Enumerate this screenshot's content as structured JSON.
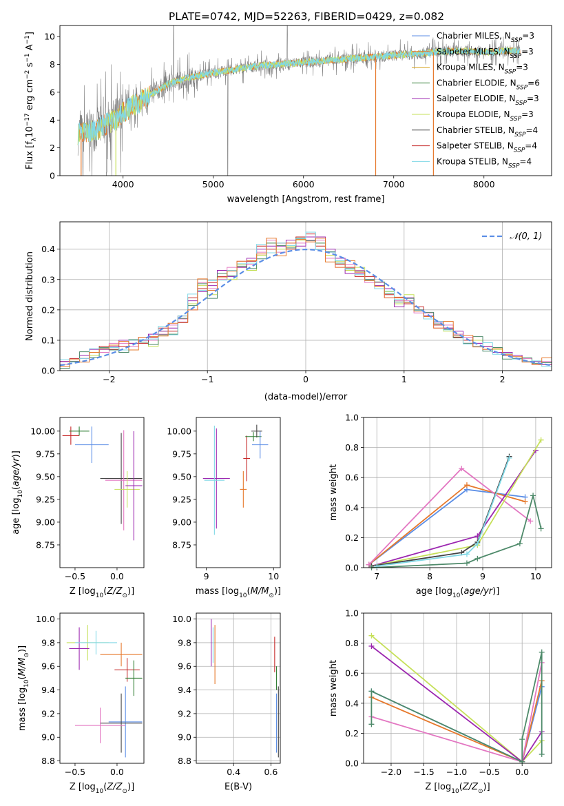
{
  "figure": {
    "title": "PLATE=0742, MJD=52263, FIBERID=0429, z=0.082"
  },
  "colors": {
    "chabrier_miles": "#5b8ee6",
    "salpeter_miles": "#e6782b",
    "kroupa_miles": "#d4a017",
    "chabrier_elodie": "#2e7d32",
    "salpeter_elodie": "#9c27b0",
    "kroupa_elodie": "#c6e05a",
    "chabrier_stelib": "#444444",
    "salpeter_stelib": "#c62828",
    "kroupa_stelib": "#80d8e6",
    "pink": "#e377c2",
    "green2": "#4e8a6a",
    "grid": "#b0b0b0",
    "data_grey": "#808080",
    "normal_curve": "#5b8ee6"
  },
  "chart_data": [
    {
      "id": "spectrum",
      "type": "line",
      "xlabel": "wavelength [Angstrom, rest frame]",
      "ylabel": "Flux [fλ10⁻¹⁷ erg cm⁻² s⁻¹ A⁻¹]",
      "xlim": [
        3300,
        8750
      ],
      "ylim": [
        0,
        10.8
      ],
      "xticks": [
        4000,
        5000,
        6000,
        7000,
        8000
      ],
      "yticks": [
        0,
        2,
        4,
        6,
        8,
        10
      ],
      "grid": false,
      "legend_position": "right",
      "legend": [
        "Chabrier MILES, N_SSP=3",
        "Salpeter MILES, N_SSP=3",
        "Kroupa MILES, N_SSP=3",
        "Chabrier ELODIE, N_SSP=6",
        "Salpeter ELODIE, N_SSP=3",
        "Kroupa ELODIE, N_SSP=3",
        "Chabrier STELIB, N_SSP=4",
        "Salpeter STELIB, N_SSP=4",
        "Kroupa STELIB, N_SSP=4"
      ],
      "legend_plain": [
        "Chabrier MILES, N",
        "Salpeter MILES, N",
        "Kroupa MILES, N",
        "Chabrier ELODIE, N",
        "Salpeter ELODIE, N",
        "Kroupa ELODIE, N",
        "Chabrier STELIB, N",
        "Salpeter STELIB, N",
        "Kroupa STELIB, N"
      ],
      "legend_counts": [
        "=3",
        "=3",
        "=3",
        "=6",
        "=3",
        "=3",
        "=4",
        "=4",
        "=4"
      ],
      "legend_sub": "SSP",
      "model_x": [
        3500,
        3700,
        3900,
        4100,
        4300,
        4500,
        4700,
        4900,
        5100,
        5300,
        5500,
        5700,
        5900,
        6100,
        6300,
        6500,
        6700,
        6900,
        7100,
        7300,
        7500,
        7700,
        7900,
        8100,
        8300,
        8400
      ],
      "model_y": [
        3.0,
        3.3,
        4.0,
        5.0,
        5.8,
        6.6,
        7.0,
        7.3,
        7.5,
        7.7,
        7.9,
        8.0,
        8.1,
        8.2,
        8.3,
        8.4,
        8.5,
        8.6,
        8.7,
        8.8,
        8.9,
        9.0,
        8.9,
        8.9,
        9.0,
        8.9
      ]
    },
    {
      "id": "residuals",
      "type": "histogram",
      "xlabel": "(data-model)/error",
      "ylabel": "Normed distribution",
      "xlim": [
        -2.5,
        2.5
      ],
      "ylim": [
        0,
        0.49
      ],
      "xticks": [
        -2,
        -1,
        0,
        1,
        2
      ],
      "yticks": [
        0.0,
        0.1,
        0.2,
        0.3,
        0.4
      ],
      "grid": true,
      "legend_position": "top-right",
      "legend_label": "𝒩(0, 1)",
      "bin_edges": [
        -2.5,
        -2.4,
        -2.3,
        -2.2,
        -2.1,
        -2.0,
        -1.9,
        -1.8,
        -1.7,
        -1.6,
        -1.5,
        -1.4,
        -1.3,
        -1.2,
        -1.1,
        -1.0,
        -0.9,
        -0.8,
        -0.7,
        -0.6,
        -0.5,
        -0.4,
        -0.3,
        -0.2,
        -0.1,
        0.0,
        0.1,
        0.2,
        0.3,
        0.4,
        0.5,
        0.6,
        0.7,
        0.8,
        0.9,
        1.0,
        1.1,
        1.2,
        1.3,
        1.4,
        1.5,
        1.6,
        1.7,
        1.8,
        1.9,
        2.0,
        2.1,
        2.2,
        2.3,
        2.4,
        2.5
      ],
      "series": [
        {
          "values": [
            0.02,
            0.03,
            0.05,
            0.05,
            0.07,
            0.08,
            0.06,
            0.09,
            0.1,
            0.08,
            0.13,
            0.12,
            0.16,
            0.22,
            0.28,
            0.25,
            0.32,
            0.3,
            0.35,
            0.33,
            0.38,
            0.42,
            0.4,
            0.41,
            0.43,
            0.44,
            0.42,
            0.38,
            0.36,
            0.33,
            0.34,
            0.3,
            0.28,
            0.26,
            0.22,
            0.25,
            0.2,
            0.18,
            0.16,
            0.13,
            0.12,
            0.09,
            0.1,
            0.07,
            0.07,
            0.05,
            0.04,
            0.03,
            0.03,
            0.02
          ]
        },
        {
          "values": [
            0.03,
            0.04,
            0.04,
            0.06,
            0.08,
            0.07,
            0.08,
            0.1,
            0.09,
            0.11,
            0.14,
            0.13,
            0.18,
            0.24,
            0.27,
            0.29,
            0.31,
            0.33,
            0.34,
            0.36,
            0.41,
            0.4,
            0.42,
            0.4,
            0.44,
            0.45,
            0.41,
            0.39,
            0.35,
            0.34,
            0.31,
            0.31,
            0.27,
            0.25,
            0.24,
            0.22,
            0.21,
            0.17,
            0.15,
            0.14,
            0.11,
            0.1,
            0.08,
            0.08,
            0.06,
            0.05,
            0.05,
            0.03,
            0.02,
            0.02
          ]
        },
        {
          "values": [
            0.02,
            0.03,
            0.04,
            0.06,
            0.06,
            0.09,
            0.09,
            0.08,
            0.11,
            0.1,
            0.12,
            0.15,
            0.17,
            0.2,
            0.29,
            0.27,
            0.3,
            0.34,
            0.36,
            0.35,
            0.39,
            0.43,
            0.39,
            0.42,
            0.42,
            0.43,
            0.43,
            0.37,
            0.34,
            0.35,
            0.33,
            0.29,
            0.29,
            0.24,
            0.23,
            0.23,
            0.19,
            0.19,
            0.14,
            0.15,
            0.12,
            0.11,
            0.09,
            0.07,
            0.06,
            0.06,
            0.04,
            0.04,
            0.02,
            0.03
          ]
        },
        {
          "values": [
            0.03,
            0.03,
            0.05,
            0.07,
            0.07,
            0.08,
            0.1,
            0.09,
            0.1,
            0.12,
            0.13,
            0.14,
            0.16,
            0.23,
            0.26,
            0.28,
            0.33,
            0.31,
            0.34,
            0.37,
            0.4,
            0.41,
            0.41,
            0.43,
            0.41,
            0.44,
            0.44,
            0.4,
            0.37,
            0.32,
            0.32,
            0.3,
            0.28,
            0.27,
            0.21,
            0.24,
            0.2,
            0.18,
            0.16,
            0.14,
            0.13,
            0.09,
            0.09,
            0.08,
            0.06,
            0.06,
            0.05,
            0.03,
            0.03,
            0.02
          ]
        }
      ],
      "normal_curve": {
        "name": "𝒩(0, 1)",
        "mean": 0,
        "sigma": 1
      }
    },
    {
      "id": "age_vs_Z",
      "type": "errorbar",
      "xlabel": "Z [log10(Z/Z⊙)]",
      "ylabel": "age  [log10(age/yr)]",
      "xlim": [
        -0.68,
        0.32
      ],
      "ylim": [
        8.5,
        10.15
      ],
      "xticks": [
        -0.5,
        0.0
      ],
      "yticks": [
        8.75,
        9.0,
        9.25,
        9.5,
        9.75,
        10.0
      ],
      "grid": false,
      "points": [
        {
          "x": -0.55,
          "y": 9.95,
          "xerr": 0.1,
          "yerr": 0.1
        },
        {
          "x": -0.45,
          "y": 10.0,
          "xerr": 0.12,
          "yerr": 0.05
        },
        {
          "x": -0.3,
          "y": 9.85,
          "xerr": 0.2,
          "yerr": 0.2
        },
        {
          "x": 0.05,
          "y": 9.48,
          "xerr": 0.25,
          "yerr": 0.5
        },
        {
          "x": 0.08,
          "y": 9.46,
          "xerr": 0.22,
          "yerr": 0.55
        },
        {
          "x": 0.12,
          "y": 9.36,
          "xerr": 0.15,
          "yerr": 0.2
        },
        {
          "x": 0.2,
          "y": 9.4,
          "xerr": 0.1,
          "yerr": 0.6
        }
      ]
    },
    {
      "id": "age_vs_mass",
      "type": "errorbar",
      "xlabel": "mass [log10(M/M⊙)]",
      "ylabel": "",
      "xlim": [
        8.85,
        10.1
      ],
      "ylim": [
        8.5,
        10.15
      ],
      "xticks": [
        9,
        10
      ],
      "yticks": [
        8.75,
        9.0,
        9.25,
        9.5,
        9.75,
        10.0
      ],
      "grid": false,
      "points": [
        {
          "x": 9.15,
          "y": 9.48,
          "xerr": 0.2,
          "yerr": 0.55
        },
        {
          "x": 9.12,
          "y": 9.46,
          "xerr": 0.15,
          "yerr": 0.6
        },
        {
          "x": 9.55,
          "y": 9.36,
          "xerr": 0.05,
          "yerr": 0.2
        },
        {
          "x": 9.6,
          "y": 9.7,
          "xerr": 0.05,
          "yerr": 0.25
        },
        {
          "x": 9.7,
          "y": 9.94,
          "xerr": 0.12,
          "yerr": 0.05
        },
        {
          "x": 9.8,
          "y": 9.85,
          "xerr": 0.12,
          "yerr": 0.15
        },
        {
          "x": 9.75,
          "y": 10.0,
          "xerr": 0.08,
          "yerr": 0.07
        }
      ]
    },
    {
      "id": "massweight_vs_age",
      "type": "line",
      "xlabel": "age  [log10(age/yr)]",
      "ylabel": "mass weight",
      "xlim": [
        6.75,
        10.3
      ],
      "ylim": [
        0,
        1.0
      ],
      "xticks": [
        7,
        8,
        9,
        10
      ],
      "yticks": [
        0.0,
        0.2,
        0.4,
        0.6,
        0.8,
        1.0
      ],
      "grid": true,
      "series": [
        {
          "x": [
            6.85,
            8.7,
            9.8
          ],
          "values": [
            0.02,
            0.52,
            0.47
          ]
        },
        {
          "x": [
            6.85,
            8.7,
            9.8
          ],
          "values": [
            0.02,
            0.55,
            0.44
          ]
        },
        {
          "x": [
            6.85,
            8.6,
            9.9
          ],
          "values": [
            0.02,
            0.66,
            0.31
          ]
        },
        {
          "x": [
            6.9,
            8.9,
            10.0
          ],
          "values": [
            0.01,
            0.21,
            0.78
          ]
        },
        {
          "x": [
            6.9,
            8.9,
            10.1
          ],
          "values": [
            0.01,
            0.15,
            0.85
          ]
        },
        {
          "x": [
            6.9,
            8.6,
            8.9,
            9.5
          ],
          "values": [
            0.01,
            0.1,
            0.17,
            0.74
          ]
        },
        {
          "x": [
            7.0,
            8.7,
            8.9,
            9.5
          ],
          "values": [
            0.01,
            0.09,
            0.16,
            0.73
          ]
        },
        {
          "x": [
            6.9,
            8.7,
            8.9,
            9.7,
            9.95,
            10.1
          ],
          "values": [
            0.0,
            0.03,
            0.06,
            0.16,
            0.48,
            0.26
          ]
        }
      ]
    },
    {
      "id": "mass_vs_Z",
      "type": "errorbar",
      "xlabel": "Z [log10(Z/Z⊙)]",
      "ylabel": "mass [log10(M/M⊙)]",
      "xlim": [
        -0.68,
        0.32
      ],
      "ylim": [
        8.78,
        10.05
      ],
      "xticks": [
        -0.5,
        0.0
      ],
      "yticks": [
        8.8,
        9.0,
        9.2,
        9.4,
        9.6,
        9.8,
        10.0
      ],
      "grid": false,
      "points": [
        {
          "x": -0.35,
          "y": 9.8,
          "xerr": 0.25,
          "yerr": 0.15
        },
        {
          "x": -0.45,
          "y": 9.75,
          "xerr": 0.12,
          "yerr": 0.18
        },
        {
          "x": -0.25,
          "y": 9.8,
          "xerr": 0.25,
          "yerr": 0.1
        },
        {
          "x": 0.05,
          "y": 9.7,
          "xerr": 0.25,
          "yerr": 0.1
        },
        {
          "x": 0.12,
          "y": 9.57,
          "xerr": 0.15,
          "yerr": 0.1
        },
        {
          "x": 0.2,
          "y": 9.5,
          "xerr": 0.1,
          "yerr": 0.15
        },
        {
          "x": 0.1,
          "y": 9.13,
          "xerr": 0.2,
          "yerr": 0.3
        },
        {
          "x": 0.05,
          "y": 9.12,
          "xerr": 0.25,
          "yerr": 0.25
        },
        {
          "x": -0.2,
          "y": 9.1,
          "xerr": 0.3,
          "yerr": 0.15
        }
      ]
    },
    {
      "id": "mass_vs_ebv",
      "type": "errorbar",
      "xlabel": "E(B-V)",
      "ylabel": "",
      "xlim": [
        0.2,
        0.65
      ],
      "ylim": [
        8.78,
        10.05
      ],
      "xticks": [
        0.4,
        0.6
      ],
      "yticks": [
        8.8,
        9.0,
        9.2,
        9.4,
        9.6,
        9.8,
        10.0
      ],
      "grid": true,
      "points": [
        {
          "x": 0.28,
          "y": 9.8,
          "xerr": 0.0,
          "yerr": 0.2
        },
        {
          "x": 0.29,
          "y": 9.78,
          "xerr": 0.0,
          "yerr": 0.15
        },
        {
          "x": 0.3,
          "y": 9.7,
          "xerr": 0.0,
          "yerr": 0.25
        },
        {
          "x": 0.62,
          "y": 9.7,
          "xerr": 0.0,
          "yerr": 0.15
        },
        {
          "x": 0.63,
          "y": 9.5,
          "xerr": 0.0,
          "yerr": 0.1
        },
        {
          "x": 0.63,
          "y": 9.12,
          "xerr": 0.0,
          "yerr": 0.25
        },
        {
          "x": 0.64,
          "y": 9.13,
          "xerr": 0.0,
          "yerr": 0.3
        }
      ]
    },
    {
      "id": "massweight_vs_Z",
      "type": "line",
      "xlabel": "Z [log10(Z/Z⊙)]",
      "ylabel": "mass weight",
      "xlim": [
        -2.42,
        0.45
      ],
      "ylim": [
        0,
        1.0
      ],
      "xticks": [
        -2.0,
        -1.5,
        -1.0,
        -0.5,
        0.0
      ],
      "yticks": [
        0.0,
        0.2,
        0.4,
        0.6,
        0.8,
        1.0
      ],
      "grid": true,
      "series": [
        {
          "x": [
            -2.3,
            0.0,
            0.3
          ],
          "values": [
            0.85,
            0.01,
            0.15
          ]
        },
        {
          "x": [
            -2.3,
            0.0,
            0.3
          ],
          "values": [
            0.78,
            0.01,
            0.21
          ]
        },
        {
          "x": [
            -2.3,
            0.0,
            0.3
          ],
          "values": [
            0.48,
            0.01,
            0.51
          ]
        },
        {
          "x": [
            -2.3,
            0.0,
            0.3
          ],
          "values": [
            0.44,
            0.01,
            0.55
          ]
        },
        {
          "x": [
            -2.3,
            0.0,
            0.3
          ],
          "values": [
            0.31,
            0.01,
            0.67
          ]
        },
        {
          "x": [
            -2.3,
            -2.3,
            0.0,
            0.0,
            0.3,
            0.3
          ],
          "values": [
            0.26,
            0.48,
            0.01,
            0.16,
            0.74,
            0.06
          ]
        }
      ]
    }
  ]
}
